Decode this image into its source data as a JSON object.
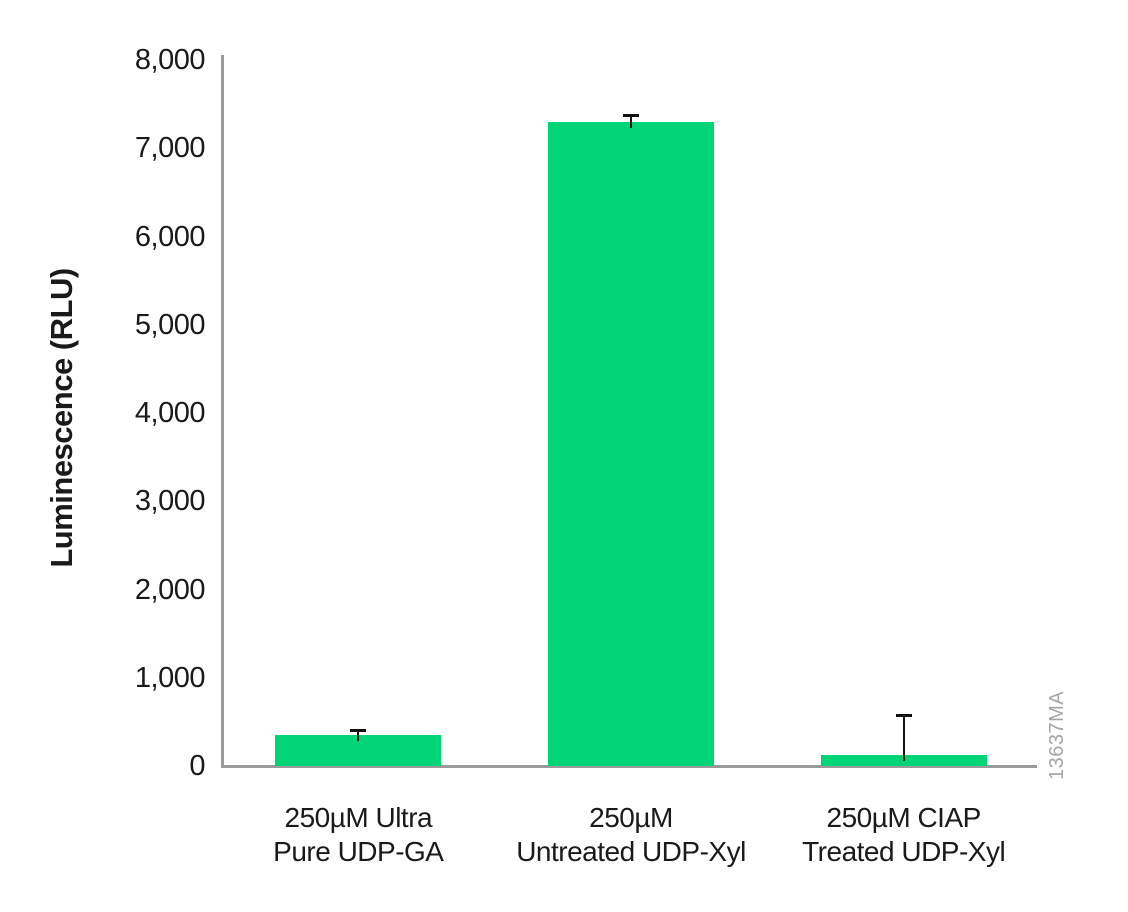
{
  "figure": {
    "watermark": "13637MA"
  },
  "colors": {
    "bar": "#02d577",
    "axis": "#9a9a9a",
    "error_bar": "#111111",
    "text": "#1a1a1a",
    "watermark": "#a6a6a6"
  },
  "chart_data": {
    "type": "bar",
    "title": "",
    "xlabel": "",
    "ylabel": "Luminescence (RLU)",
    "ylim": [
      0,
      8000
    ],
    "ytick_step": 1000,
    "ytick_labels": [
      "0",
      "1,000",
      "2,000",
      "3,000",
      "4,000",
      "5,000",
      "6,000",
      "7,000",
      "8,000"
    ],
    "grid": false,
    "legend": "none",
    "categories": [
      "250µM Ultra\nPure UDP-GA",
      "250µM\nUntreated UDP-Xyl",
      "250µM CIAP\nTreated UDP-Xyl"
    ],
    "values": [
      350,
      7300,
      120
    ],
    "error_plus": [
      60,
      80,
      460
    ]
  }
}
